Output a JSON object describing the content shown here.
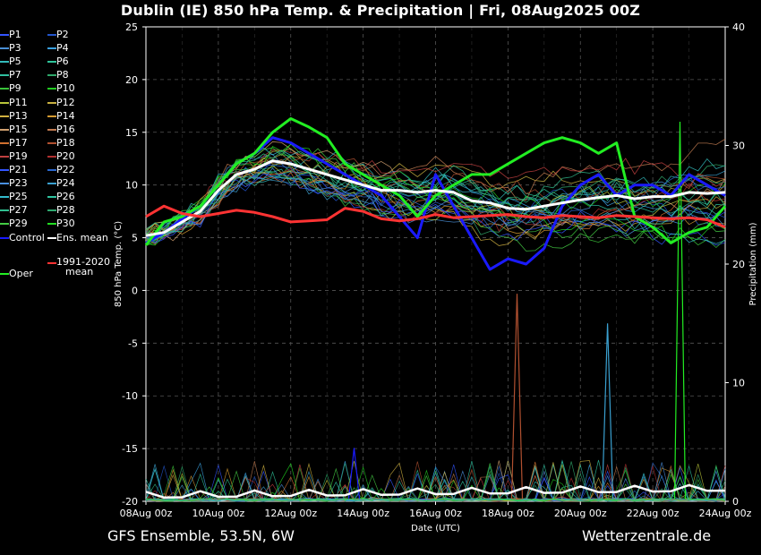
{
  "header": {
    "title": "Dublin  (IE)  850 hPa Temp. & Precipitation | Fri, 08Aug2025 00Z"
  },
  "footer": {
    "left": "GFS Ensemble, 53.5N, 6W",
    "right": "Wetterzentrale.de"
  },
  "legend": {
    "items": [
      {
        "label": "P1",
        "color": "#3355ff"
      },
      {
        "label": "P2",
        "color": "#2255cc"
      },
      {
        "label": "P3",
        "color": "#4a8fd6"
      },
      {
        "label": "P4",
        "color": "#3aa0e0"
      },
      {
        "label": "P5",
        "color": "#33bbbb"
      },
      {
        "label": "P6",
        "color": "#2fc49a"
      },
      {
        "label": "P7",
        "color": "#30c0a0"
      },
      {
        "label": "P8",
        "color": "#2fa86a"
      },
      {
        "label": "P9",
        "color": "#39c33a"
      },
      {
        "label": "P10",
        "color": "#22cc22"
      },
      {
        "label": "P11",
        "color": "#b8c43a"
      },
      {
        "label": "P12",
        "color": "#c8b040"
      },
      {
        "label": "P13",
        "color": "#d0b040"
      },
      {
        "label": "P14",
        "color": "#d49a30"
      },
      {
        "label": "P15",
        "color": "#d0a070"
      },
      {
        "label": "P16",
        "color": "#c07a50"
      },
      {
        "label": "P17",
        "color": "#d07030"
      },
      {
        "label": "P18",
        "color": "#b05030"
      },
      {
        "label": "P19",
        "color": "#c04040"
      },
      {
        "label": "P20",
        "color": "#b03030"
      },
      {
        "label": "P21",
        "color": "#3355ff"
      },
      {
        "label": "P22",
        "color": "#2a66cc"
      },
      {
        "label": "P23",
        "color": "#4a90e0"
      },
      {
        "label": "P24",
        "color": "#3aa0d0"
      },
      {
        "label": "P25",
        "color": "#33bbcc"
      },
      {
        "label": "P26",
        "color": "#2fc4a0"
      },
      {
        "label": "P27",
        "color": "#30c090"
      },
      {
        "label": "P28",
        "color": "#2fa870"
      },
      {
        "label": "P29",
        "color": "#44cc44"
      },
      {
        "label": "P30",
        "color": "#22dd22"
      },
      {
        "label": "Control",
        "color": "#1a1aff"
      },
      {
        "label": "Ens. mean",
        "color": "#ffffff"
      },
      {
        "label": "1991-2020 mean",
        "color": "#ff3333"
      },
      {
        "label": "Oper",
        "color": "#22ee22"
      }
    ]
  },
  "chart_data": {
    "type": "line",
    "title": "Dublin  (IE)  850 hPa Temp. & Precipitation | Fri, 08Aug2025 00Z",
    "xlabel": "Date (UTC)",
    "ylabel": "850 hPa Temp. (°C)",
    "y2label": "Precipitation (mm)",
    "ylim": [
      -20,
      25
    ],
    "y2lim": [
      0,
      40
    ],
    "yticks": [
      -20,
      -15,
      -10,
      -5,
      0,
      5,
      10,
      15,
      20,
      25
    ],
    "y2ticks": [
      0,
      10,
      20,
      30,
      40
    ],
    "xticks": [
      "08Aug 00z",
      "10Aug 00z",
      "12Aug 00z",
      "14Aug 00z",
      "16Aug 00z",
      "18Aug 00z",
      "20Aug 00z",
      "22Aug 00z",
      "24Aug 00z"
    ],
    "x_hours_max": 384,
    "grid": true,
    "series": [
      {
        "name": "Control",
        "color": "#1a1aff",
        "hours": [
          0,
          12,
          24,
          36,
          48,
          60,
          72,
          84,
          96,
          108,
          120,
          132,
          144,
          156,
          168,
          180,
          192,
          204,
          216,
          228,
          240,
          252,
          264,
          276,
          288,
          300,
          312,
          324,
          336,
          348,
          360,
          372,
          384
        ],
        "values": [
          4.5,
          5.5,
          6.8,
          8,
          10,
          12,
          13,
          14.5,
          14,
          13,
          12,
          11,
          10,
          9,
          7,
          5,
          11,
          8,
          5,
          2,
          3,
          2.5,
          4,
          8,
          10,
          11,
          9,
          10,
          10,
          9,
          11,
          10,
          9
        ]
      },
      {
        "name": "Oper",
        "color": "#22ee22",
        "hours": [
          0,
          12,
          24,
          36,
          48,
          60,
          72,
          84,
          96,
          108,
          120,
          132,
          144,
          156,
          168,
          180,
          192,
          204,
          216,
          228,
          240,
          252,
          264,
          276,
          288,
          300,
          312,
          324,
          336,
          348,
          360,
          372,
          384
        ],
        "values": [
          4.3,
          6.5,
          7,
          8,
          10,
          12,
          13,
          15,
          16.3,
          15.5,
          14.5,
          12,
          11,
          10,
          9,
          7,
          9,
          10,
          11,
          11,
          12,
          13,
          14,
          14.5,
          14,
          13,
          14,
          7,
          6,
          4.5,
          5.5,
          6,
          8
        ]
      },
      {
        "name": "Ens. mean",
        "color": "#ffffff",
        "hours": [
          0,
          12,
          24,
          36,
          48,
          60,
          72,
          84,
          96,
          108,
          120,
          132,
          144,
          156,
          168,
          180,
          192,
          204,
          216,
          228,
          240,
          252,
          264,
          276,
          288,
          300,
          312,
          324,
          336,
          348,
          360,
          372,
          384
        ],
        "values": [
          5.2,
          5.5,
          6.5,
          7.5,
          9.5,
          11,
          11.5,
          12.3,
          12,
          11.5,
          11,
          10.5,
          10,
          9.5,
          9.5,
          9.3,
          9.5,
          9.3,
          8.5,
          8.3,
          7.8,
          7.7,
          8,
          8.3,
          8.6,
          8.8,
          9,
          8.7,
          8.9,
          8.9,
          9.3,
          9.2,
          9.3
        ]
      },
      {
        "name": "1991-2020 mean",
        "color": "#ff3333",
        "hours": [
          0,
          12,
          24,
          36,
          48,
          60,
          72,
          84,
          96,
          108,
          120,
          132,
          144,
          156,
          168,
          180,
          192,
          204,
          216,
          228,
          240,
          252,
          264,
          276,
          288,
          300,
          312,
          324,
          336,
          348,
          360,
          372,
          384
        ],
        "values": [
          7,
          8,
          7.3,
          7,
          7.3,
          7.6,
          7.4,
          7,
          6.5,
          6.6,
          6.7,
          7.8,
          7.5,
          6.8,
          6.6,
          6.8,
          7.2,
          6.9,
          7,
          7.1,
          7.2,
          7,
          6.9,
          7.1,
          7,
          6.9,
          7.1,
          7,
          6.9,
          6.8,
          6.9,
          6.7,
          6
        ]
      }
    ],
    "precipitation_peaks": [
      {
        "series": "Control",
        "hour": 138,
        "mm": 4.5
      },
      {
        "series": "P18",
        "hour": 246,
        "mm": 17.5
      },
      {
        "series": "P24",
        "hour": 306,
        "mm": 15
      },
      {
        "series": "Oper",
        "hour": 354,
        "mm": 32
      }
    ]
  }
}
